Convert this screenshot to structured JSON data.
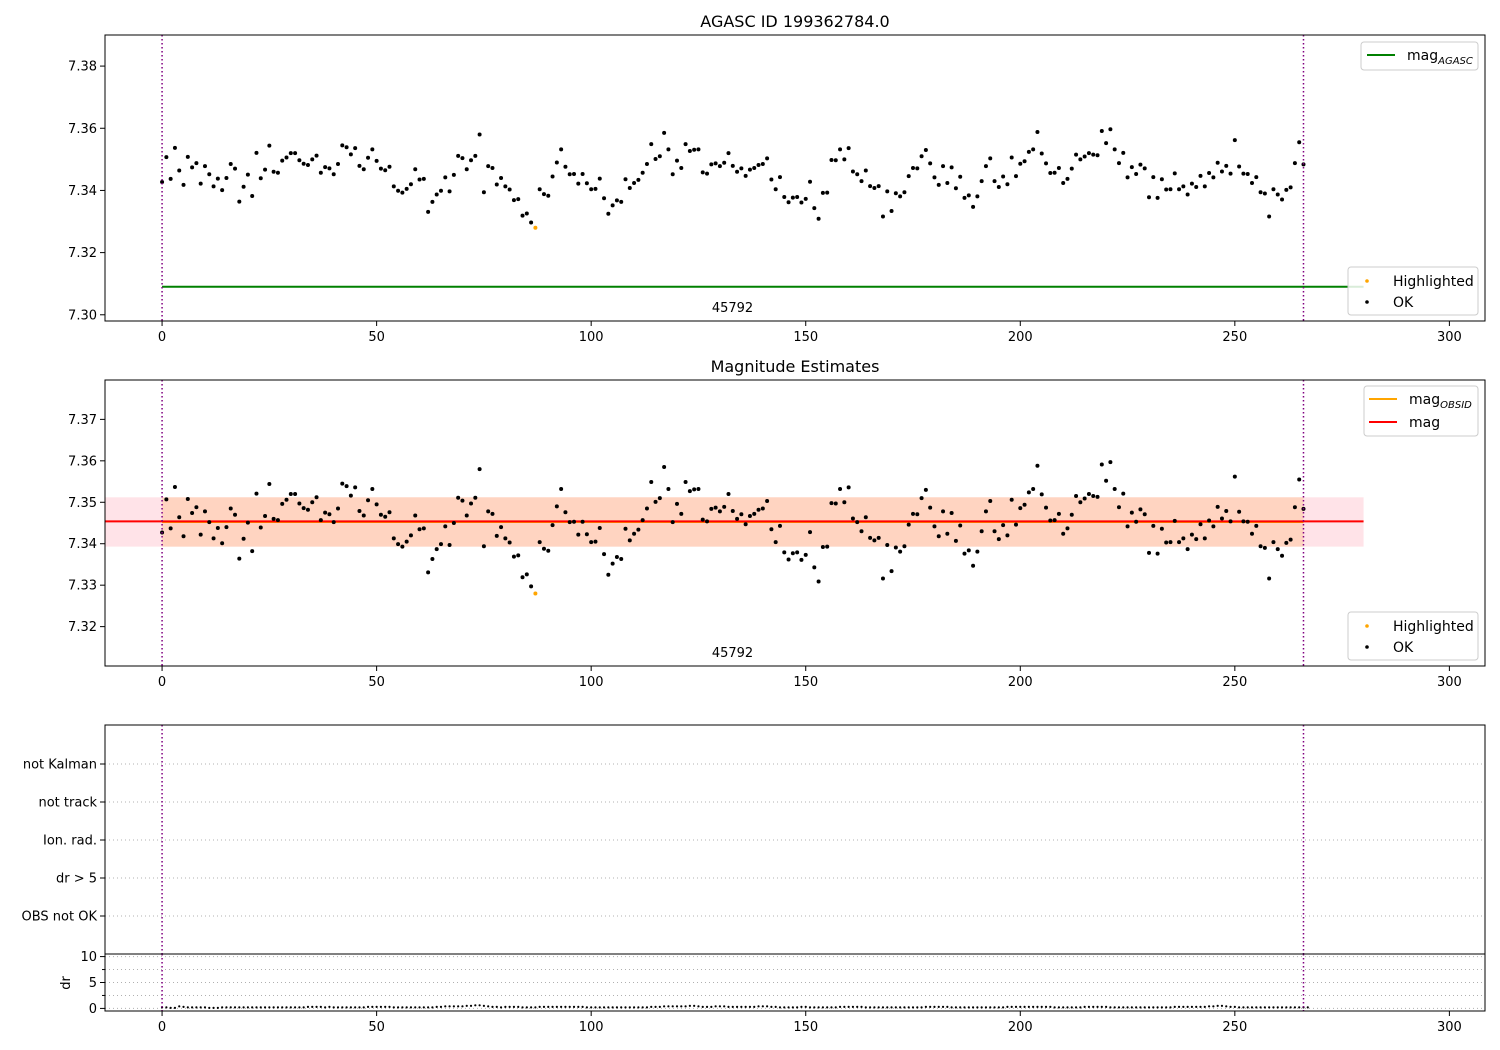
{
  "colors": {
    "ok": "#000000",
    "highlighted": "#ffa500",
    "mag_agasc": "#008000",
    "mag_obsid": "#ffa500",
    "mag": "#ff0000",
    "obs_boundary": "#800080",
    "band_outer": "#ffc0cb",
    "band_inner": "#ffc8a0",
    "grid": "#b0b0b0"
  },
  "chart_data": [
    {
      "type": "scatter",
      "title": "AGASC ID 199362784.0",
      "xlim": [
        -13.3,
        308.3
      ],
      "ylim": [
        7.298,
        7.39
      ],
      "x_ticks": [
        0,
        50,
        100,
        150,
        200,
        250,
        300
      ],
      "y_ticks": [
        7.3,
        7.32,
        7.34,
        7.36,
        7.38
      ],
      "mag_agasc": 7.309,
      "obs_boundaries": [
        0,
        266
      ],
      "obsid_label": "45792",
      "highlighted_point": {
        "x": 87,
        "y": 7.328
      },
      "legend_lines": [
        {
          "name": "mag",
          "subscript": "AGASC",
          "kind": "line"
        }
      ],
      "legend_points": [
        {
          "name": "Highlighted",
          "kind": "dot"
        },
        {
          "name": "OK",
          "kind": "dot"
        }
      ]
    },
    {
      "type": "scatter",
      "title": "Magnitude Estimates",
      "xlim": [
        -13.3,
        308.3
      ],
      "ylim": [
        7.3105,
        7.3795
      ],
      "x_ticks": [
        0,
        50,
        100,
        150,
        200,
        250,
        300
      ],
      "y_ticks": [
        7.32,
        7.33,
        7.34,
        7.35,
        7.36,
        7.37
      ],
      "mag_obsid": 7.3453,
      "mag": 7.3454,
      "band": {
        "x_range": [
          0,
          280
        ],
        "outer": [
          7.3393,
          7.3512
        ],
        "inner": [
          7.3393,
          7.3512
        ]
      },
      "obs_boundaries": [
        0,
        266
      ],
      "obsid_label": "45792",
      "highlighted_point": {
        "x": 87,
        "y": 7.328
      },
      "legend_lines": [
        {
          "name": "mag",
          "subscript": "OBSID",
          "kind": "line"
        },
        {
          "name": "mag",
          "subscript": "",
          "kind": "line"
        }
      ],
      "legend_points": [
        {
          "name": "Highlighted",
          "kind": "dot"
        },
        {
          "name": "OK",
          "kind": "dot"
        }
      ]
    },
    {
      "type": "scatter",
      "title": "",
      "xlim": [
        -13.3,
        308.3
      ],
      "flag_categories": [
        "OBS not OK",
        "dr > 5",
        "Ion. rad.",
        "not track",
        "not Kalman"
      ],
      "obs_boundaries": [
        0,
        266
      ]
    },
    {
      "type": "scatter",
      "title": "",
      "ylabel": "dr",
      "xlim": [
        -13.3,
        308.3
      ],
      "ylim": [
        -0.5,
        10.5
      ],
      "x_ticks": [
        0,
        50,
        100,
        150,
        200,
        250,
        300
      ],
      "y_ticks": [
        0,
        5,
        10
      ],
      "obs_boundaries": [
        0,
        266
      ]
    }
  ],
  "magnitudes": [
    7.3427,
    7.3507,
    7.3437,
    7.3537,
    7.3464,
    7.3418,
    7.3508,
    7.3474,
    7.3488,
    7.3422,
    7.3478,
    7.3452,
    7.3413,
    7.3438,
    7.3401,
    7.344,
    7.3485,
    7.347,
    7.3364,
    7.3412,
    7.3451,
    7.3382,
    7.3521,
    7.3439,
    7.3467,
    7.3544,
    7.346,
    7.3457,
    7.3496,
    7.3506,
    7.352,
    7.352,
    7.3497,
    7.3486,
    7.3482,
    7.35,
    7.3512,
    7.3457,
    7.3475,
    7.3471,
    7.3452,
    7.3485,
    7.3545,
    7.3539,
    7.3516,
    7.3536,
    7.3479,
    7.3468,
    7.3505,
    7.3532,
    7.3495,
    7.347,
    7.3465,
    7.3476,
    7.3413,
    7.3399,
    7.3393,
    7.3405,
    7.342,
    7.3468,
    7.3435,
    7.3437,
    7.3331,
    7.3363,
    7.3387,
    7.3399,
    7.3442,
    7.3397,
    7.345,
    7.3511,
    7.3504,
    7.3468,
    7.3497,
    7.3511,
    7.358,
    7.3394,
    7.3478,
    7.3472,
    7.3419,
    7.344,
    7.3413,
    7.3403,
    7.3369,
    7.3372,
    7.3319,
    7.3326,
    7.3297,
    7.328,
    7.3404,
    7.3388,
    7.3383,
    7.3445,
    7.349,
    7.3532,
    7.3476,
    7.3452,
    7.3453,
    7.3422,
    7.3453,
    7.3423,
    7.3404,
    7.3405,
    7.3438,
    7.3375,
    7.3325,
    7.3352,
    7.3368,
    7.3363,
    7.3436,
    7.3408,
    7.3424,
    7.3434,
    7.3457,
    7.3485,
    7.3549,
    7.3501,
    7.351,
    7.3585,
    7.3532,
    7.3452,
    7.3496,
    7.3472,
    7.3549,
    7.3527,
    7.3531,
    7.3532,
    7.3458,
    7.3454,
    7.3484,
    7.3487,
    7.3478,
    7.3489,
    7.352,
    7.3479,
    7.346,
    7.3471,
    7.3447,
    7.3467,
    7.3472,
    7.3482,
    7.3485,
    7.3503,
    7.3435,
    7.3404,
    7.3443,
    7.3379,
    7.3362,
    7.3377,
    7.3379,
    7.3361,
    7.3373,
    7.3428,
    7.3343,
    7.3309,
    7.3392,
    7.3393,
    7.3498,
    7.3497,
    7.3532,
    7.35,
    7.3536,
    7.3461,
    7.3452,
    7.343,
    7.3464,
    7.3414,
    7.3408,
    7.3414,
    7.3316,
    7.3397,
    7.3334,
    7.3391,
    7.3381,
    7.3394,
    7.3446,
    7.3472,
    7.3471,
    7.351,
    7.353,
    7.3487,
    7.3442,
    7.3418,
    7.3478,
    7.3424,
    7.3474,
    7.3407,
    7.3444,
    7.3376,
    7.3384,
    7.3347,
    7.3381,
    7.343,
    7.3478,
    7.3503,
    7.343,
    7.3411,
    7.3445,
    7.342,
    7.3506,
    7.3446,
    7.3486,
    7.3494,
    7.3524,
    7.3532,
    7.3588,
    7.3519,
    7.3487,
    7.3456,
    7.3457,
    7.3472,
    7.3424,
    7.3437,
    7.347,
    7.3515,
    7.35,
    7.3509,
    7.352,
    7.3515,
    7.3513,
    7.3591,
    7.3552,
    7.3597,
    7.3532,
    7.3488,
    7.3521,
    7.3442,
    7.3475,
    7.3453,
    7.3483,
    7.3471,
    7.3378,
    7.3443,
    7.3376,
    7.3436,
    7.3403,
    7.3404,
    7.3455,
    7.3404,
    7.3413,
    7.3387,
    7.3422,
    7.3411,
    7.3447,
    7.3413,
    7.3456,
    7.3442,
    7.3489,
    7.3461,
    7.3479,
    7.3454,
    7.3562,
    7.3477,
    7.3454,
    7.3453,
    7.3424,
    7.3443,
    7.3394,
    7.339,
    7.3316,
    7.3404,
    7.3387,
    7.3371,
    7.3402,
    7.341,
    7.3488,
    7.3555,
    7.3484
  ],
  "dr_values": [
    0.2,
    0.2,
    0.1,
    0.1,
    0.4,
    0.3,
    0.2,
    0.2,
    0.2,
    0.2,
    0.2,
    0.1,
    0.1,
    0.1,
    0.2,
    0.2,
    0.2,
    0.2,
    0.2,
    0.2,
    0.2,
    0.2,
    0.2,
    0.2,
    0.2,
    0.2,
    0.2,
    0.2,
    0.2,
    0.2,
    0.2,
    0.2,
    0.2,
    0.2,
    0.3,
    0.3,
    0.3,
    0.3,
    0.2,
    0.3,
    0.2,
    0.2,
    0.2,
    0.2,
    0.2,
    0.2,
    0.2,
    0.2,
    0.3,
    0.3,
    0.3,
    0.3,
    0.3,
    0.3,
    0.2,
    0.2,
    0.2,
    0.2,
    0.2,
    0.2,
    0.2,
    0.2,
    0.2,
    0.2,
    0.3,
    0.3,
    0.4,
    0.4,
    0.4,
    0.4,
    0.4,
    0.5,
    0.5,
    0.6,
    0.6,
    0.5,
    0.4,
    0.3,
    0.3,
    0.2,
    0.3,
    0.3,
    0.3,
    0.3,
    0.2,
    0.2,
    0.2,
    0.2,
    0.3,
    0.3,
    0.3,
    0.3,
    0.3,
    0.3,
    0.3,
    0.3,
    0.3,
    0.3,
    0.3,
    0.2,
    0.2,
    0.2,
    0.2,
    0.2,
    0.2,
    0.2,
    0.2,
    0.2,
    0.2,
    0.2,
    0.2,
    0.2,
    0.2,
    0.2,
    0.3,
    0.3,
    0.3,
    0.4,
    0.4,
    0.4,
    0.4,
    0.4,
    0.4,
    0.5,
    0.5,
    0.4,
    0.3,
    0.3,
    0.3,
    0.4,
    0.4,
    0.4,
    0.3,
    0.3,
    0.3,
    0.3,
    0.3,
    0.3,
    0.3,
    0.4,
    0.4,
    0.4,
    0.3,
    0.3,
    0.2,
    0.2,
    0.2,
    0.2,
    0.2,
    0.3,
    0.3,
    0.2,
    0.2,
    0.2,
    0.2,
    0.2,
    0.2,
    0.2,
    0.3,
    0.3,
    0.3,
    0.3,
    0.3,
    0.3,
    0.2,
    0.2,
    0.2,
    0.2,
    0.2,
    0.2,
    0.2,
    0.2,
    0.2,
    0.2,
    0.2,
    0.2,
    0.2,
    0.2,
    0.3,
    0.3,
    0.3,
    0.3,
    0.3,
    0.3,
    0.2,
    0.2,
    0.2,
    0.2,
    0.2,
    0.2,
    0.2,
    0.2,
    0.2,
    0.2,
    0.2,
    0.2,
    0.2,
    0.3,
    0.3,
    0.3,
    0.3,
    0.3,
    0.3,
    0.3,
    0.3,
    0.3,
    0.3,
    0.3,
    0.2,
    0.2,
    0.2,
    0.2,
    0.2,
    0.2,
    0.2,
    0.3,
    0.3,
    0.3,
    0.3,
    0.3,
    0.3,
    0.2,
    0.2,
    0.2,
    0.2,
    0.2,
    0.2,
    0.2,
    0.2,
    0.2,
    0.2,
    0.2,
    0.2,
    0.2,
    0.2,
    0.2,
    0.3,
    0.3,
    0.3,
    0.3,
    0.3,
    0.3,
    0.3,
    0.3,
    0.4,
    0.4,
    0.5,
    0.5,
    0.4,
    0.3,
    0.3,
    0.2,
    0.2,
    0.2,
    0.2,
    0.2,
    0.2,
    0.2,
    0.2,
    0.2,
    0.2,
    0.2,
    0.2,
    0.2,
    0.2,
    0.2,
    0.2,
    0.2
  ]
}
